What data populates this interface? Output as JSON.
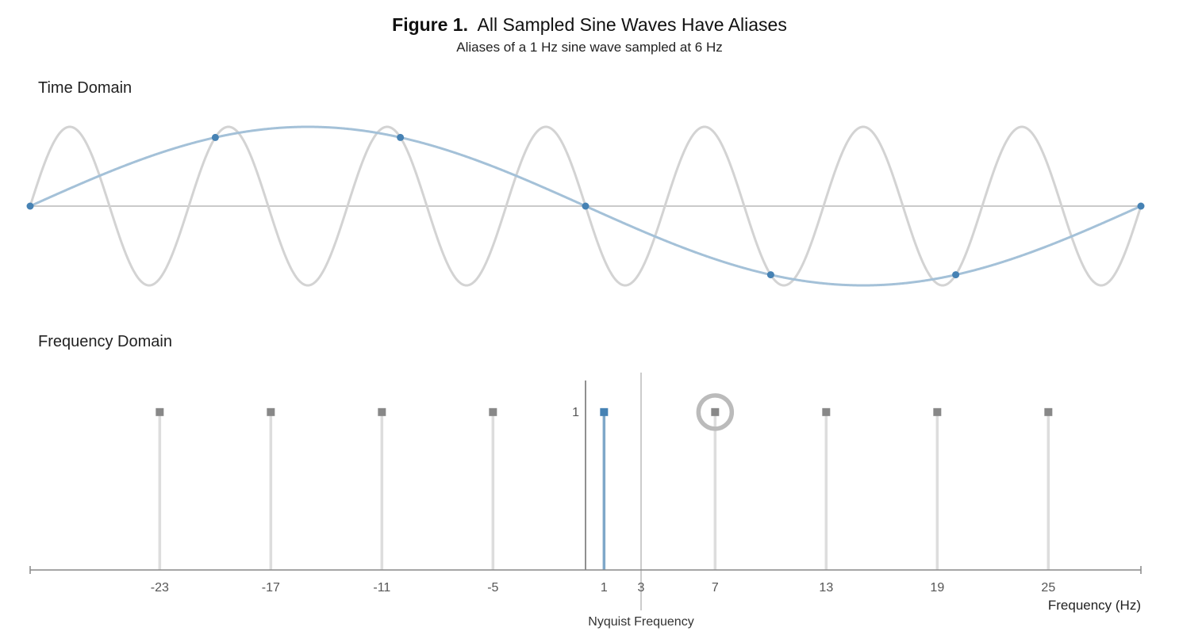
{
  "title": {
    "figure_label": "Figure 1.",
    "text": "All Sampled Sine Waves Have Aliases"
  },
  "subtitle": "Aliases of a 1 Hz sine wave sampled at 6 Hz",
  "panels": {
    "time_domain_label": "Time Domain",
    "frequency_domain_label": "Frequency Domain"
  },
  "colors": {
    "signal": "#4682b4",
    "signal_curve": "#a4c1d8",
    "alias_curve": "#d3d3d3",
    "alias_marker": "#888888",
    "alias_stem": "#dddddd",
    "highlight_ring": "#bbbbbb",
    "axis": "#888888"
  },
  "chart_data": [
    {
      "type": "line",
      "panel": "Time Domain",
      "series": [
        {
          "name": "",
          "frequency_hz": 1,
          "amplitude": 1,
          "role": "signal"
        },
        {
          "name": "",
          "frequency_hz": 7,
          "amplitude": 1,
          "role": "alias"
        }
      ],
      "samples": {
        "rate_hz": 6,
        "t": [
          0,
          0.1667,
          0.3333,
          0.5,
          0.6667,
          0.8333,
          1.0
        ],
        "y": [
          0,
          0.866,
          0.866,
          0,
          -0.866,
          -0.866,
          0
        ]
      },
      "xlim": [
        0,
        1
      ],
      "ylim": [
        -1,
        1
      ],
      "grid": false
    },
    {
      "type": "stem",
      "panel": "Frequency Domain",
      "signal": {
        "frequency_hz": 1,
        "magnitude": 1
      },
      "aliases": [
        -23,
        -17,
        -11,
        -5,
        7,
        13,
        19,
        25
      ],
      "highlighted_alias": 7,
      "nyquist_hz": 3,
      "nyquist_label": "Nyquist Frequency",
      "x_ticks": [
        "-23",
        "-17",
        "-11",
        "-5",
        "1",
        "3",
        "7",
        "13",
        "19",
        "25"
      ],
      "y_ticks": [
        "1"
      ],
      "xlabel": "Frequency (Hz)",
      "xlim": [
        -30,
        30
      ],
      "ylim": [
        0,
        1.2
      ],
      "grid": false
    }
  ]
}
